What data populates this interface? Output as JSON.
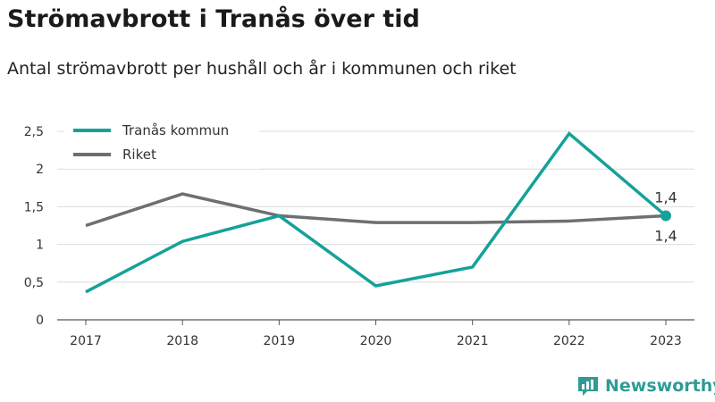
{
  "title": "Strömavbrott i Tranås över tid",
  "subtitle": "Antal strömavbrott per hushåll och år i kommunen och riket",
  "brand": "Newsworthy",
  "chart_data": {
    "type": "line",
    "categories": [
      "2017",
      "2018",
      "2019",
      "2020",
      "2021",
      "2022",
      "2023"
    ],
    "ylim": [
      0,
      2.5
    ],
    "yticks": [
      "0",
      "0,5",
      "1",
      "1,5",
      "2",
      "2,5"
    ],
    "grid": true,
    "legend_position": "top-left",
    "series": [
      {
        "name": "Tranås kommun",
        "color": "#14a19a",
        "values": [
          0.37,
          1.04,
          1.38,
          0.45,
          0.7,
          2.47,
          1.38
        ]
      },
      {
        "name": "Riket",
        "color": "#6e6e73",
        "values": [
          1.25,
          1.67,
          1.38,
          1.29,
          1.29,
          1.31,
          1.38
        ]
      }
    ],
    "data_labels": [
      {
        "series": "Tranås kommun",
        "category": "2023",
        "text": "1,4"
      },
      {
        "series": "Riket",
        "category": "2023",
        "text": "1,4"
      }
    ]
  }
}
